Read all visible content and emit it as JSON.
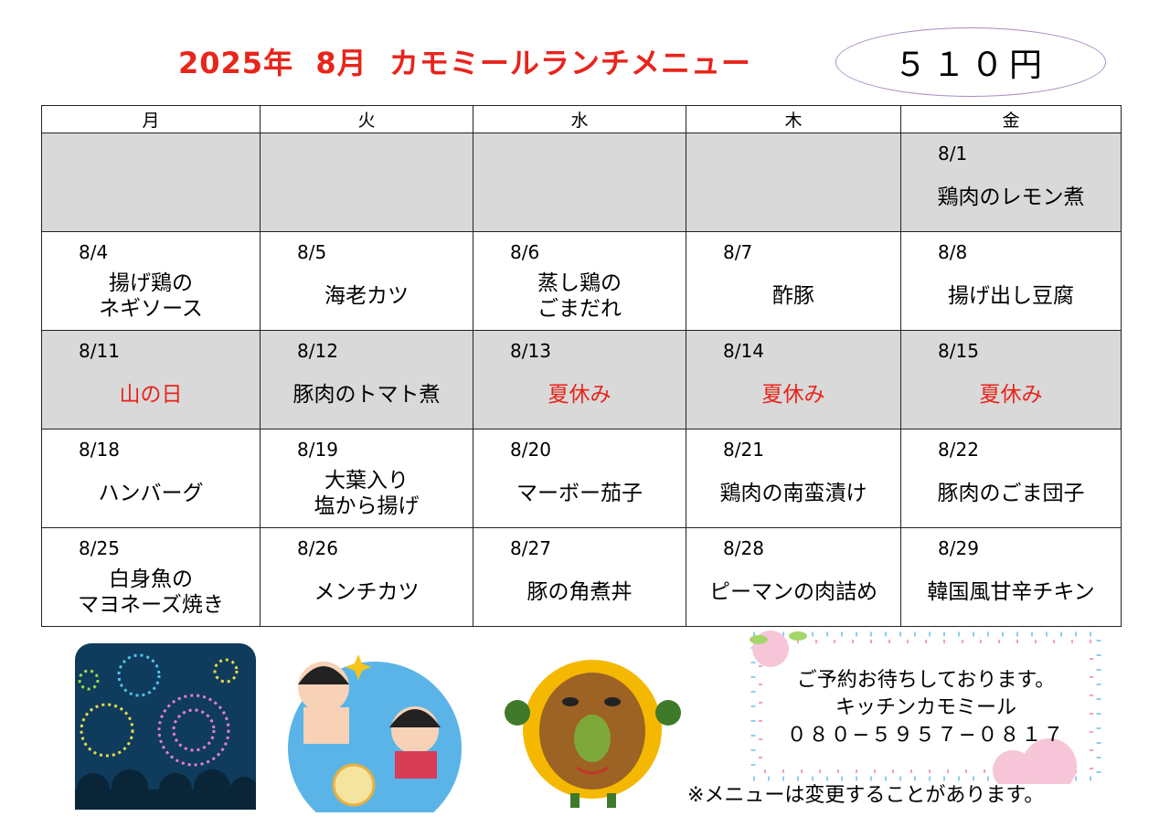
{
  "header": {
    "title": "2025年  8月  カモミールランチメニュー",
    "price": "５１０円"
  },
  "weekdays": [
    "月",
    "火",
    "水",
    "木",
    "金"
  ],
  "weeks": [
    {
      "gray": true,
      "days": [
        {
          "date": "",
          "dish": ""
        },
        {
          "date": "",
          "dish": ""
        },
        {
          "date": "",
          "dish": ""
        },
        {
          "date": "",
          "dish": ""
        },
        {
          "date": "8/1",
          "dish": "鶏肉のレモン煮"
        }
      ]
    },
    {
      "gray": false,
      "days": [
        {
          "date": "8/4",
          "dish": "揚げ鶏の\nネギソース"
        },
        {
          "date": "8/5",
          "dish": "海老カツ"
        },
        {
          "date": "8/6",
          "dish": "蒸し鶏の\nごまだれ"
        },
        {
          "date": "8/7",
          "dish": "酢豚"
        },
        {
          "date": "8/8",
          "dish": "揚げ出し豆腐"
        }
      ]
    },
    {
      "gray": true,
      "days": [
        {
          "date": "8/11",
          "dish": "山の日",
          "holiday": true
        },
        {
          "date": "8/12",
          "dish": "豚肉のトマト煮"
        },
        {
          "date": "8/13",
          "dish": "夏休み",
          "holiday": true
        },
        {
          "date": "8/14",
          "dish": "夏休み",
          "holiday": true
        },
        {
          "date": "8/15",
          "dish": "夏休み",
          "holiday": true
        }
      ]
    },
    {
      "gray": false,
      "days": [
        {
          "date": "8/18",
          "dish": "ハンバーグ"
        },
        {
          "date": "8/19",
          "dish": "大葉入り\n塩から揚げ"
        },
        {
          "date": "8/20",
          "dish": "マーボー茄子"
        },
        {
          "date": "8/21",
          "dish": "鶏肉の南蛮漬け"
        },
        {
          "date": "8/22",
          "dish": "豚肉のごま団子"
        }
      ]
    },
    {
      "gray": false,
      "days": [
        {
          "date": "8/25",
          "dish": "白身魚の\nマヨネーズ焼き"
        },
        {
          "date": "8/26",
          "dish": "メンチカツ"
        },
        {
          "date": "8/27",
          "dish": "豚の角煮丼"
        },
        {
          "date": "8/28",
          "dish": "ピーマンの肉詰め"
        },
        {
          "date": "8/29",
          "dish": "韓国風甘辛チキン"
        }
      ]
    }
  ],
  "contact": {
    "line1": "ご予約お待ちしております。",
    "line2": "キッチンカモミール",
    "phone": "０８０−５９５７−０８１７"
  },
  "note": "※メニューは変更することがあります。",
  "colors": {
    "title": "#e8241b",
    "holiday": "#e8241b",
    "gray_row": "#d9d9d9"
  }
}
